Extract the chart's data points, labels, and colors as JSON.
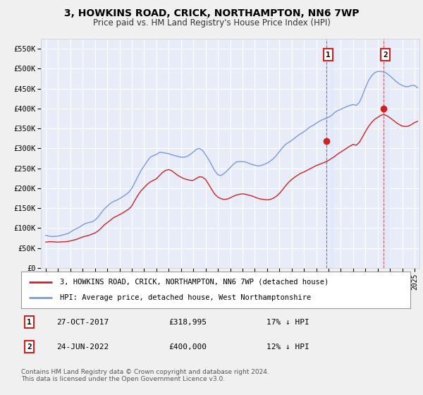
{
  "title": "3, HOWKINS ROAD, CRICK, NORTHAMPTON, NN6 7WP",
  "subtitle": "Price paid vs. HM Land Registry's House Price Index (HPI)",
  "ylabel_ticks": [
    "£0",
    "£50K",
    "£100K",
    "£150K",
    "£200K",
    "£250K",
    "£300K",
    "£350K",
    "£400K",
    "£450K",
    "£500K",
    "£550K"
  ],
  "ytick_vals": [
    0,
    50000,
    100000,
    150000,
    200000,
    250000,
    300000,
    350000,
    400000,
    450000,
    500000,
    550000
  ],
  "ylim": [
    0,
    575000
  ],
  "xlim_start": 1994.6,
  "xlim_end": 2025.4,
  "bg_color": "#f0f0f0",
  "plot_bg": "#e8ecf8",
  "grid_color": "#ffffff",
  "hpi_color": "#7799dd",
  "price_color": "#cc2222",
  "purchase1_x": 2017.82,
  "purchase1_y": 318995,
  "purchase2_x": 2022.48,
  "purchase2_y": 400000,
  "legend_line1": "3, HOWKINS ROAD, CRICK, NORTHAMPTON, NN6 7WP (detached house)",
  "legend_line2": "HPI: Average price, detached house, West Northamptonshire",
  "ann1_date": "27-OCT-2017",
  "ann1_price": "£318,995",
  "ann1_pct": "17% ↓ HPI",
  "ann2_date": "24-JUN-2022",
  "ann2_price": "£400,000",
  "ann2_pct": "12% ↓ HPI",
  "footer": "Contains HM Land Registry data © Crown copyright and database right 2024.\nThis data is licensed under the Open Government Licence v3.0.",
  "hpi_data": [
    [
      1995.0,
      82000
    ],
    [
      1995.25,
      80000
    ],
    [
      1995.5,
      79000
    ],
    [
      1995.75,
      79500
    ],
    [
      1996.0,
      80000
    ],
    [
      1996.25,
      82000
    ],
    [
      1996.5,
      84000
    ],
    [
      1996.75,
      86000
    ],
    [
      1997.0,
      90000
    ],
    [
      1997.25,
      95000
    ],
    [
      1997.5,
      99000
    ],
    [
      1997.75,
      103000
    ],
    [
      1998.0,
      108000
    ],
    [
      1998.25,
      112000
    ],
    [
      1998.5,
      114000
    ],
    [
      1998.75,
      116000
    ],
    [
      1999.0,
      120000
    ],
    [
      1999.25,
      128000
    ],
    [
      1999.5,
      138000
    ],
    [
      1999.75,
      148000
    ],
    [
      2000.0,
      155000
    ],
    [
      2000.25,
      162000
    ],
    [
      2000.5,
      167000
    ],
    [
      2000.75,
      170000
    ],
    [
      2001.0,
      174000
    ],
    [
      2001.25,
      179000
    ],
    [
      2001.5,
      184000
    ],
    [
      2001.75,
      190000
    ],
    [
      2002.0,
      200000
    ],
    [
      2002.25,
      215000
    ],
    [
      2002.5,
      230000
    ],
    [
      2002.75,
      245000
    ],
    [
      2003.0,
      256000
    ],
    [
      2003.25,
      268000
    ],
    [
      2003.5,
      278000
    ],
    [
      2003.75,
      282000
    ],
    [
      2004.0,
      285000
    ],
    [
      2004.25,
      290000
    ],
    [
      2004.5,
      290000
    ],
    [
      2004.75,
      288000
    ],
    [
      2005.0,
      287000
    ],
    [
      2005.25,
      284000
    ],
    [
      2005.5,
      282000
    ],
    [
      2005.75,
      280000
    ],
    [
      2006.0,
      278000
    ],
    [
      2006.25,
      278000
    ],
    [
      2006.5,
      280000
    ],
    [
      2006.75,
      285000
    ],
    [
      2007.0,
      291000
    ],
    [
      2007.25,
      298000
    ],
    [
      2007.5,
      300000
    ],
    [
      2007.75,
      295000
    ],
    [
      2008.0,
      284000
    ],
    [
      2008.25,
      272000
    ],
    [
      2008.5,
      258000
    ],
    [
      2008.75,
      244000
    ],
    [
      2009.0,
      234000
    ],
    [
      2009.25,
      232000
    ],
    [
      2009.5,
      237000
    ],
    [
      2009.75,
      244000
    ],
    [
      2010.0,
      252000
    ],
    [
      2010.25,
      260000
    ],
    [
      2010.5,
      266000
    ],
    [
      2010.75,
      267000
    ],
    [
      2011.0,
      267000
    ],
    [
      2011.25,
      266000
    ],
    [
      2011.5,
      263000
    ],
    [
      2011.75,
      260000
    ],
    [
      2012.0,
      258000
    ],
    [
      2012.25,
      256000
    ],
    [
      2012.5,
      257000
    ],
    [
      2012.75,
      260000
    ],
    [
      2013.0,
      263000
    ],
    [
      2013.25,
      268000
    ],
    [
      2013.5,
      274000
    ],
    [
      2013.75,
      282000
    ],
    [
      2014.0,
      292000
    ],
    [
      2014.25,
      302000
    ],
    [
      2014.5,
      310000
    ],
    [
      2014.75,
      315000
    ],
    [
      2015.0,
      320000
    ],
    [
      2015.25,
      326000
    ],
    [
      2015.5,
      332000
    ],
    [
      2015.75,
      337000
    ],
    [
      2016.0,
      342000
    ],
    [
      2016.25,
      348000
    ],
    [
      2016.5,
      354000
    ],
    [
      2016.75,
      358000
    ],
    [
      2017.0,
      363000
    ],
    [
      2017.25,
      368000
    ],
    [
      2017.5,
      372000
    ],
    [
      2017.75,
      375000
    ],
    [
      2018.0,
      378000
    ],
    [
      2018.25,
      383000
    ],
    [
      2018.5,
      390000
    ],
    [
      2018.75,
      395000
    ],
    [
      2019.0,
      398000
    ],
    [
      2019.25,
      402000
    ],
    [
      2019.5,
      405000
    ],
    [
      2019.75,
      408000
    ],
    [
      2020.0,
      410000
    ],
    [
      2020.25,
      408000
    ],
    [
      2020.5,
      415000
    ],
    [
      2020.75,
      432000
    ],
    [
      2021.0,
      452000
    ],
    [
      2021.25,
      470000
    ],
    [
      2021.5,
      482000
    ],
    [
      2021.75,
      490000
    ],
    [
      2022.0,
      493000
    ],
    [
      2022.25,
      493000
    ],
    [
      2022.5,
      492000
    ],
    [
      2022.75,
      488000
    ],
    [
      2023.0,
      482000
    ],
    [
      2023.25,
      475000
    ],
    [
      2023.5,
      468000
    ],
    [
      2023.75,
      462000
    ],
    [
      2024.0,
      458000
    ],
    [
      2024.25,
      455000
    ],
    [
      2024.5,
      455000
    ],
    [
      2024.75,
      458000
    ],
    [
      2025.0,
      458000
    ],
    [
      2025.25,
      452000
    ]
  ],
  "price_data": [
    [
      1995.0,
      65000
    ],
    [
      1995.25,
      66000
    ],
    [
      1995.5,
      66000
    ],
    [
      1995.75,
      65500
    ],
    [
      1996.0,
      65000
    ],
    [
      1996.25,
      65500
    ],
    [
      1996.5,
      66000
    ],
    [
      1996.75,
      66500
    ],
    [
      1997.0,
      68000
    ],
    [
      1997.25,
      70000
    ],
    [
      1997.5,
      72000
    ],
    [
      1997.75,
      75000
    ],
    [
      1998.0,
      78000
    ],
    [
      1998.25,
      80000
    ],
    [
      1998.5,
      82000
    ],
    [
      1998.75,
      85000
    ],
    [
      1999.0,
      88000
    ],
    [
      1999.25,
      93000
    ],
    [
      1999.5,
      100000
    ],
    [
      1999.75,
      108000
    ],
    [
      2000.0,
      114000
    ],
    [
      2000.25,
      120000
    ],
    [
      2000.5,
      126000
    ],
    [
      2000.75,
      130000
    ],
    [
      2001.0,
      134000
    ],
    [
      2001.25,
      138000
    ],
    [
      2001.5,
      143000
    ],
    [
      2001.75,
      148000
    ],
    [
      2002.0,
      156000
    ],
    [
      2002.25,
      170000
    ],
    [
      2002.5,
      183000
    ],
    [
      2002.75,
      194000
    ],
    [
      2003.0,
      202000
    ],
    [
      2003.25,
      210000
    ],
    [
      2003.5,
      216000
    ],
    [
      2003.75,
      220000
    ],
    [
      2004.0,
      224000
    ],
    [
      2004.25,
      232000
    ],
    [
      2004.5,
      240000
    ],
    [
      2004.75,
      245000
    ],
    [
      2005.0,
      247000
    ],
    [
      2005.25,
      244000
    ],
    [
      2005.5,
      238000
    ],
    [
      2005.75,
      232000
    ],
    [
      2006.0,
      228000
    ],
    [
      2006.25,
      224000
    ],
    [
      2006.5,
      222000
    ],
    [
      2006.75,
      220000
    ],
    [
      2007.0,
      220000
    ],
    [
      2007.25,
      225000
    ],
    [
      2007.5,
      229000
    ],
    [
      2007.75,
      228000
    ],
    [
      2008.0,
      222000
    ],
    [
      2008.25,
      210000
    ],
    [
      2008.5,
      197000
    ],
    [
      2008.75,
      185000
    ],
    [
      2009.0,
      178000
    ],
    [
      2009.25,
      174000
    ],
    [
      2009.5,
      172000
    ],
    [
      2009.75,
      173000
    ],
    [
      2010.0,
      176000
    ],
    [
      2010.25,
      180000
    ],
    [
      2010.5,
      183000
    ],
    [
      2010.75,
      185000
    ],
    [
      2011.0,
      186000
    ],
    [
      2011.25,
      185000
    ],
    [
      2011.5,
      183000
    ],
    [
      2011.75,
      181000
    ],
    [
      2012.0,
      178000
    ],
    [
      2012.25,
      175000
    ],
    [
      2012.5,
      173000
    ],
    [
      2012.75,
      172000
    ],
    [
      2013.0,
      171000
    ],
    [
      2013.25,
      172000
    ],
    [
      2013.5,
      175000
    ],
    [
      2013.75,
      180000
    ],
    [
      2014.0,
      187000
    ],
    [
      2014.25,
      196000
    ],
    [
      2014.5,
      206000
    ],
    [
      2014.75,
      215000
    ],
    [
      2015.0,
      222000
    ],
    [
      2015.25,
      228000
    ],
    [
      2015.5,
      233000
    ],
    [
      2015.75,
      238000
    ],
    [
      2016.0,
      241000
    ],
    [
      2016.25,
      245000
    ],
    [
      2016.5,
      249000
    ],
    [
      2016.75,
      253000
    ],
    [
      2017.0,
      257000
    ],
    [
      2017.25,
      260000
    ],
    [
      2017.5,
      263000
    ],
    [
      2017.75,
      266000
    ],
    [
      2018.0,
      270000
    ],
    [
      2018.25,
      275000
    ],
    [
      2018.5,
      280000
    ],
    [
      2018.75,
      286000
    ],
    [
      2019.0,
      291000
    ],
    [
      2019.25,
      296000
    ],
    [
      2019.5,
      301000
    ],
    [
      2019.75,
      306000
    ],
    [
      2020.0,
      310000
    ],
    [
      2020.25,
      308000
    ],
    [
      2020.5,
      315000
    ],
    [
      2020.75,
      328000
    ],
    [
      2021.0,
      342000
    ],
    [
      2021.25,
      355000
    ],
    [
      2021.5,
      365000
    ],
    [
      2021.75,
      373000
    ],
    [
      2022.0,
      378000
    ],
    [
      2022.25,
      383000
    ],
    [
      2022.5,
      385000
    ],
    [
      2022.75,
      382000
    ],
    [
      2023.0,
      377000
    ],
    [
      2023.25,
      371000
    ],
    [
      2023.5,
      365000
    ],
    [
      2023.75,
      360000
    ],
    [
      2024.0,
      356000
    ],
    [
      2024.25,
      355000
    ],
    [
      2024.5,
      356000
    ],
    [
      2024.75,
      360000
    ],
    [
      2025.0,
      365000
    ],
    [
      2025.25,
      368000
    ]
  ]
}
